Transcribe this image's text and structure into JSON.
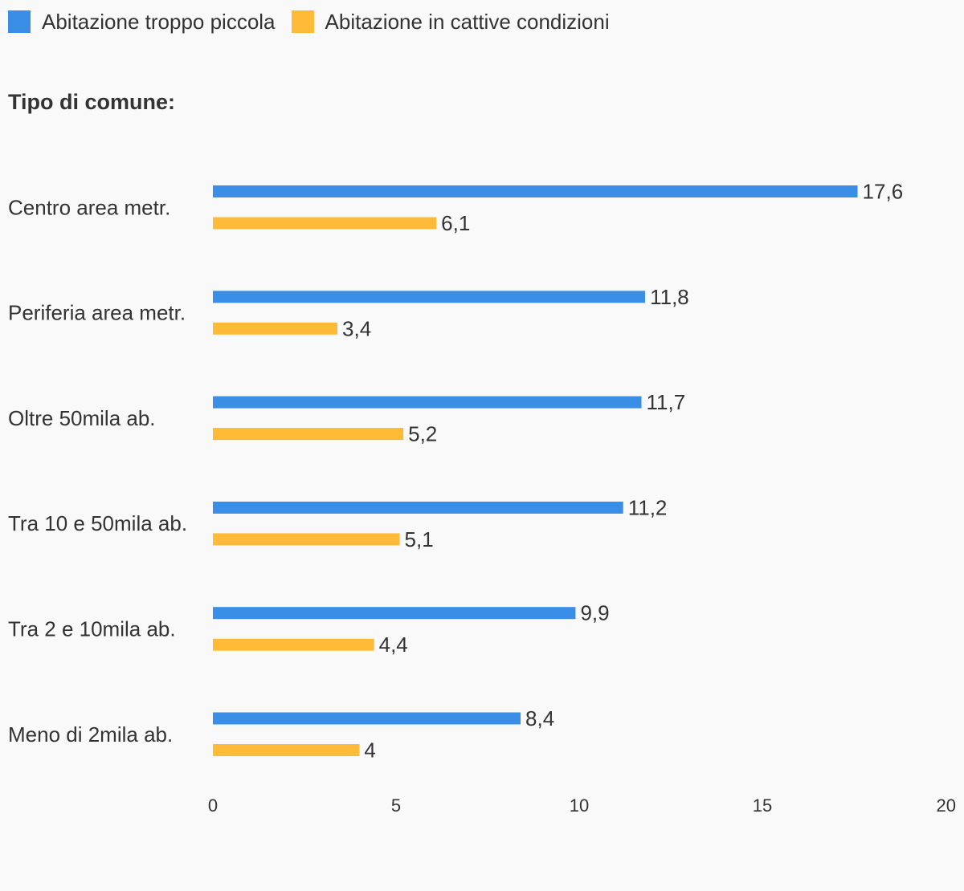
{
  "legend": {
    "items": [
      {
        "label": "Abitazione troppo piccola",
        "color": "#3a8ee6"
      },
      {
        "label": "Abitazione in cattive condizioni",
        "color": "#ffba38"
      }
    ]
  },
  "section_title": "Tipo di comune:",
  "chart_data": {
    "type": "bar",
    "orientation": "horizontal",
    "categories": [
      "Centro area metr.",
      "Periferia area metr.",
      "Oltre 50mila ab.",
      "Tra 10 e 50mila ab.",
      "Tra 2 e 10mila ab.",
      "Meno di 2mila ab."
    ],
    "series": [
      {
        "name": "Abitazione troppo piccola",
        "color": "#3a8ee6",
        "values": [
          17.6,
          11.8,
          11.7,
          11.2,
          9.9,
          8.4
        ],
        "value_labels": [
          "17,6",
          "11,8",
          "11,7",
          "11,2",
          "9,9",
          "8,4"
        ]
      },
      {
        "name": "Abitazione in cattive condizioni",
        "color": "#ffba38",
        "values": [
          6.1,
          3.4,
          5.2,
          5.1,
          4.4,
          4
        ],
        "value_labels": [
          "6,1",
          "3,4",
          "5,2",
          "5,1",
          "4,4",
          "4"
        ]
      }
    ],
    "xlim": [
      0,
      20
    ],
    "xticks": [
      0,
      5,
      10,
      15,
      20
    ],
    "xtick_labels": [
      "0",
      "5",
      "10",
      "15",
      "20"
    ],
    "grid": false,
    "legend_position": "top-left"
  }
}
